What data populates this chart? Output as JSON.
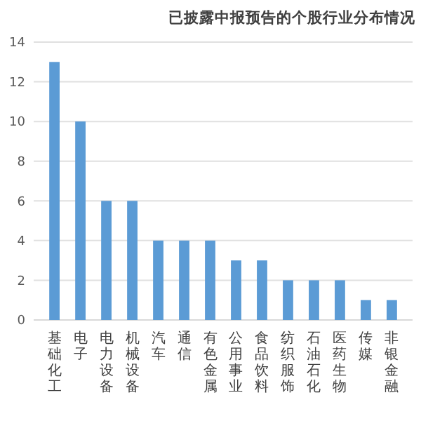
{
  "chart_data": {
    "type": "bar",
    "title": "已披露中报预告的个股行业分布情况",
    "categories": [
      "基础化工",
      "电子",
      "电力设备",
      "机械设备",
      "汽车",
      "通信",
      "有色金属",
      "公用事业",
      "食品饮料",
      "纺织服饰",
      "石油石化",
      "医药生物",
      "传媒",
      "非银金融"
    ],
    "values": [
      13,
      10,
      6,
      6,
      4,
      4,
      4,
      3,
      3,
      2,
      2,
      2,
      1,
      1
    ],
    "color": "#5b9bd5",
    "ylim": [
      0,
      14
    ],
    "yticks": [
      0,
      2,
      4,
      6,
      8,
      10,
      12,
      14
    ],
    "grid": "y"
  }
}
